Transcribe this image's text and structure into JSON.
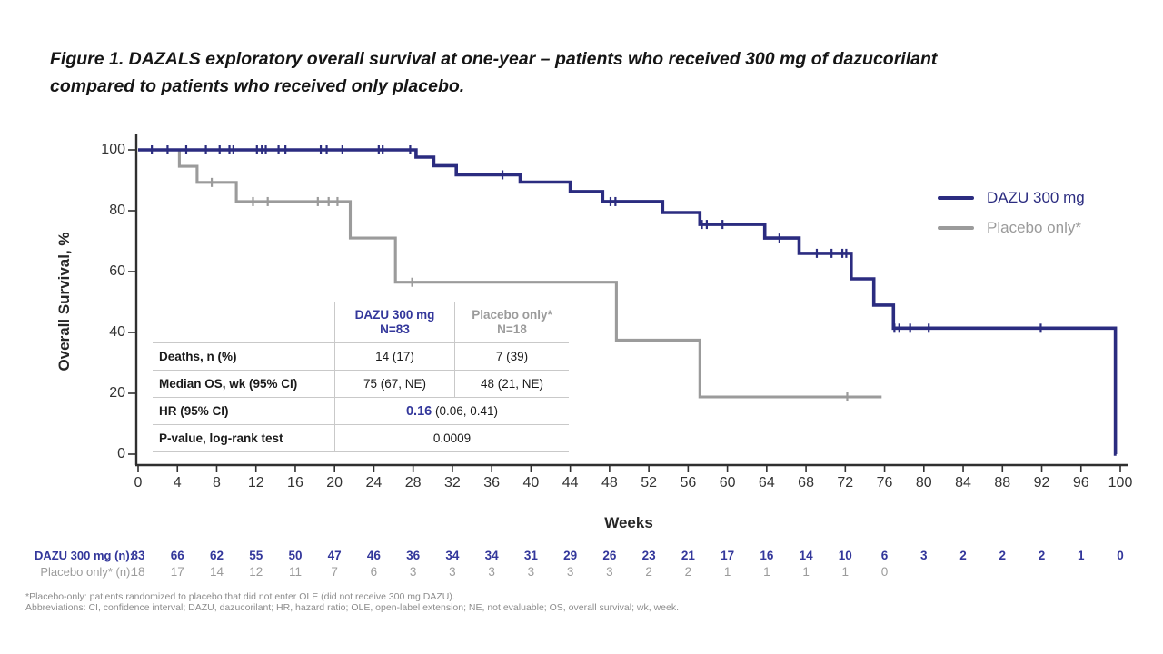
{
  "figure": {
    "title_line1": "Figure 1. DAZALS exploratory overall survival at one-year – patients who received 300 mg of dazucorilant",
    "title_line2": "compared to patients who received only placebo."
  },
  "colors": {
    "navy": "#2b2c80",
    "navy_text": "#33379b",
    "gray": "#9b9b9b",
    "axis": "#2f2f2f"
  },
  "chart_data": {
    "type": "line",
    "subtype": "kaplan-meier-step",
    "title": "",
    "xlabel": "Weeks",
    "ylabel": "Overall Survival, %",
    "xlim": [
      0,
      100
    ],
    "ylim": [
      0,
      100
    ],
    "x_ticks": [
      0,
      4,
      8,
      12,
      16,
      20,
      24,
      28,
      32,
      36,
      40,
      44,
      48,
      52,
      56,
      60,
      64,
      68,
      72,
      76,
      80,
      84,
      88,
      92,
      96,
      100
    ],
    "y_ticks": [
      0,
      20,
      40,
      60,
      80,
      100
    ],
    "grid": false,
    "legend_position": "right",
    "series": [
      {
        "name": "DAZU 300 mg",
        "color": "#2b2c80",
        "steps": [
          [
            0,
            100
          ],
          [
            28.3,
            97.6
          ],
          [
            30.1,
            94.8
          ],
          [
            32.4,
            91.8
          ],
          [
            38.9,
            89.4
          ],
          [
            44,
            86.3
          ],
          [
            47.3,
            83
          ],
          [
            53.4,
            79.4
          ],
          [
            57.2,
            75.5
          ],
          [
            63.8,
            71
          ],
          [
            67.3,
            66
          ],
          [
            72.6,
            57.6
          ],
          [
            74.9,
            49
          ],
          [
            76.9,
            41.4
          ],
          [
            99.5,
            0
          ]
        ],
        "end_week": 99.6,
        "censor_marks": [
          [
            1.4,
            100
          ],
          [
            3,
            100
          ],
          [
            4.9,
            100
          ],
          [
            6.9,
            100
          ],
          [
            8.3,
            100
          ],
          [
            9.3,
            100
          ],
          [
            9.7,
            100
          ],
          [
            12.1,
            100
          ],
          [
            12.6,
            100
          ],
          [
            13,
            100
          ],
          [
            14.3,
            100
          ],
          [
            15,
            100
          ],
          [
            18.6,
            100
          ],
          [
            19.2,
            100
          ],
          [
            20.8,
            100
          ],
          [
            24.5,
            100
          ],
          [
            24.9,
            100
          ],
          [
            27.7,
            100
          ],
          [
            37.1,
            91.8
          ],
          [
            48.1,
            83
          ],
          [
            48.6,
            83
          ],
          [
            57.4,
            75.5
          ],
          [
            57.9,
            75.5
          ],
          [
            59.5,
            75.5
          ],
          [
            65.3,
            71
          ],
          [
            69.1,
            66
          ],
          [
            70.6,
            66
          ],
          [
            71.7,
            66
          ],
          [
            72.1,
            66
          ],
          [
            77,
            41.4
          ],
          [
            77.5,
            41.4
          ],
          [
            78.6,
            41.4
          ],
          [
            80.5,
            41.4
          ],
          [
            91.9,
            41.4
          ]
        ]
      },
      {
        "name": "Placebo only*",
        "color": "#9b9b9b",
        "steps": [
          [
            0,
            100
          ],
          [
            4.2,
            94.6
          ],
          [
            6,
            89.3
          ],
          [
            10,
            83
          ],
          [
            21.6,
            71
          ],
          [
            26.2,
            56.5
          ],
          [
            48.7,
            37.5
          ],
          [
            57.2,
            18.8
          ]
        ],
        "end_week": 75.7,
        "censor_marks": [
          [
            7.5,
            89.3
          ],
          [
            11.7,
            83
          ],
          [
            13.2,
            83
          ],
          [
            18.3,
            83
          ],
          [
            19.4,
            83
          ],
          [
            20.3,
            83
          ],
          [
            27.9,
            56.5
          ],
          [
            72.2,
            18.8
          ]
        ]
      }
    ]
  },
  "legend": {
    "items": [
      {
        "label": "DAZU 300 mg",
        "color": "#2b2c80"
      },
      {
        "label": "Placebo only*",
        "color": "#9b9b9b"
      }
    ]
  },
  "stats_table": {
    "header": {
      "dazu_line1": "DAZU 300 mg",
      "dazu_line2": "N=83",
      "placebo_line1": "Placebo only*",
      "placebo_line2": "N=18"
    },
    "rows": {
      "deaths": {
        "label": "Deaths, n (%)",
        "dazu": "14 (17)",
        "placebo": "7 (39)"
      },
      "median": {
        "label": "Median OS, wk (95% CI)",
        "dazu": "75 (67, NE)",
        "placebo": "48 (21, NE)"
      },
      "hr": {
        "label": "HR (95% CI)",
        "value_highlight": "0.16",
        "value_rest": " (0.06, 0.41)"
      },
      "pvalue": {
        "label": "P-value, log-rank test",
        "value": "0.0009"
      }
    }
  },
  "at_risk": {
    "rows": [
      {
        "label": "DAZU 300 mg (n):",
        "color": "#33379b",
        "bold": true,
        "values": [
          83,
          66,
          62,
          55,
          50,
          47,
          46,
          36,
          34,
          34,
          31,
          29,
          26,
          23,
          21,
          17,
          16,
          14,
          10,
          6,
          3,
          2,
          2,
          2,
          1,
          0
        ]
      },
      {
        "label": "Placebo only* (n):",
        "color": "#9b9b9b",
        "bold": false,
        "values": [
          18,
          17,
          14,
          12,
          11,
          7,
          6,
          3,
          3,
          3,
          3,
          3,
          3,
          2,
          2,
          1,
          1,
          1,
          1,
          0
        ]
      }
    ]
  },
  "footnotes": {
    "line1": "*Placebo-only: patients randomized to placebo that did not enter OLE (did not receive 300 mg DAZU).",
    "line2": "Abbreviations: CI, confidence interval; DAZU, dazucorilant; HR, hazard ratio; OLE, open-label extension; NE, not evaluable; OS, overall survival; wk, week."
  }
}
